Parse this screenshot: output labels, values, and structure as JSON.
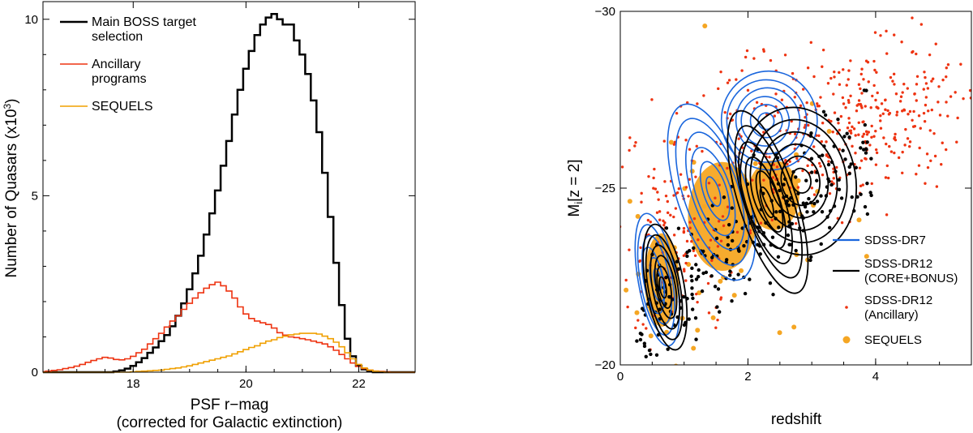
{
  "chart_data": [
    {
      "type": "line",
      "style": "step-histogram",
      "ylabel": "Number of Quasars (x10^3)",
      "xlabel": "PSF r−mag",
      "xlabel_sub": "(corrected for Galactic extinction)",
      "xlim": [
        16.4,
        23.0
      ],
      "ylim": [
        0,
        10.5
      ],
      "xticks": [
        18,
        20,
        22
      ],
      "yticks": [
        0,
        5,
        10
      ],
      "ytick_labels": [
        "0",
        "5",
        "10"
      ],
      "legend_position": "top-left",
      "series": [
        {
          "name": "Main BOSS target selection",
          "legend_lines": [
            "Main BOSS target",
            "selection"
          ],
          "color": "#000000",
          "x": [
            16.5,
            16.6,
            16.7,
            16.8,
            16.9,
            17.0,
            17.1,
            17.2,
            17.3,
            17.4,
            17.5,
            17.6,
            17.7,
            17.8,
            17.9,
            18.0,
            18.1,
            18.2,
            18.3,
            18.4,
            18.5,
            18.6,
            18.7,
            18.8,
            18.9,
            19.0,
            19.1,
            19.2,
            19.3,
            19.4,
            19.5,
            19.6,
            19.7,
            19.8,
            19.9,
            20.0,
            20.1,
            20.2,
            20.3,
            20.4,
            20.5,
            20.6,
            20.7,
            20.8,
            20.9,
            21.0,
            21.1,
            21.2,
            21.3,
            21.4,
            21.5,
            21.6,
            21.7,
            21.8,
            21.9,
            22.0,
            22.1,
            22.2,
            22.3,
            22.4,
            22.5,
            22.6,
            22.7,
            22.8,
            22.9
          ],
          "values": [
            0,
            0,
            0,
            0,
            0,
            0,
            0,
            0,
            0,
            0,
            0,
            0,
            0.02,
            0.05,
            0.1,
            0.18,
            0.28,
            0.4,
            0.55,
            0.7,
            0.88,
            1.05,
            1.3,
            1.6,
            1.95,
            2.35,
            2.8,
            3.3,
            3.9,
            4.5,
            5.15,
            5.85,
            6.55,
            7.3,
            8.0,
            8.6,
            9.1,
            9.55,
            9.85,
            10.05,
            10.15,
            10.0,
            9.85,
            9.85,
            9.4,
            9.0,
            8.45,
            7.7,
            6.8,
            5.65,
            4.4,
            3.1,
            1.9,
            0.95,
            0.45,
            0.18,
            0.08,
            0.03,
            0,
            0,
            0,
            0,
            0,
            0,
            0
          ]
        },
        {
          "name": "Ancillary programs",
          "legend_lines": [
            "Ancillary",
            "programs"
          ],
          "color": "#ee3311",
          "x": [
            16.5,
            16.6,
            16.7,
            16.8,
            16.9,
            17.0,
            17.1,
            17.2,
            17.3,
            17.4,
            17.5,
            17.6,
            17.7,
            17.8,
            17.9,
            18.0,
            18.1,
            18.2,
            18.3,
            18.4,
            18.5,
            18.6,
            18.7,
            18.8,
            18.9,
            19.0,
            19.1,
            19.2,
            19.3,
            19.4,
            19.5,
            19.6,
            19.7,
            19.8,
            19.9,
            20.0,
            20.1,
            20.2,
            20.3,
            20.4,
            20.5,
            20.6,
            20.7,
            20.8,
            20.9,
            21.0,
            21.1,
            21.2,
            21.3,
            21.4,
            21.5,
            21.6,
            21.7,
            21.8,
            21.9,
            22.0,
            22.1,
            22.2,
            22.3,
            22.4,
            22.5,
            22.6,
            22.7,
            22.8,
            22.9
          ],
          "values": [
            0.03,
            0.05,
            0.07,
            0.1,
            0.13,
            0.17,
            0.22,
            0.28,
            0.33,
            0.38,
            0.42,
            0.4,
            0.36,
            0.35,
            0.38,
            0.45,
            0.55,
            0.65,
            0.8,
            0.95,
            1.1,
            1.28,
            1.45,
            1.6,
            1.78,
            1.95,
            2.1,
            2.25,
            2.38,
            2.48,
            2.55,
            2.45,
            2.3,
            2.1,
            1.85,
            1.65,
            1.52,
            1.45,
            1.4,
            1.35,
            1.25,
            1.12,
            1.05,
            1.0,
            0.98,
            0.95,
            0.92,
            0.88,
            0.84,
            0.8,
            0.72,
            0.62,
            0.5,
            0.38,
            0.26,
            0.16,
            0.1,
            0.06,
            0.03,
            0.02,
            0.01,
            0,
            0,
            0,
            0
          ]
        },
        {
          "name": "SEQUELS",
          "legend_lines": [
            "SEQUELS"
          ],
          "color": "#f0a000",
          "x": [
            16.5,
            16.6,
            16.7,
            16.8,
            16.9,
            17.0,
            17.1,
            17.2,
            17.3,
            17.4,
            17.5,
            17.6,
            17.7,
            17.8,
            17.9,
            18.0,
            18.1,
            18.2,
            18.3,
            18.4,
            18.5,
            18.6,
            18.7,
            18.8,
            18.9,
            19.0,
            19.1,
            19.2,
            19.3,
            19.4,
            19.5,
            19.6,
            19.7,
            19.8,
            19.9,
            20.0,
            20.1,
            20.2,
            20.3,
            20.4,
            20.5,
            20.6,
            20.7,
            20.8,
            20.9,
            21.0,
            21.1,
            21.2,
            21.3,
            21.4,
            21.5,
            21.6,
            21.7,
            21.8,
            21.9,
            22.0,
            22.1,
            22.2,
            22.3,
            22.4,
            22.5,
            22.6,
            22.7,
            22.8,
            22.9
          ],
          "values": [
            0,
            0,
            0,
            0,
            0,
            0,
            0,
            0,
            0,
            0,
            0,
            0,
            0,
            0,
            0,
            0.01,
            0.02,
            0.03,
            0.04,
            0.05,
            0.06,
            0.08,
            0.1,
            0.12,
            0.15,
            0.18,
            0.22,
            0.26,
            0.3,
            0.34,
            0.38,
            0.42,
            0.46,
            0.52,
            0.58,
            0.64,
            0.7,
            0.75,
            0.82,
            0.88,
            0.92,
            0.98,
            1.02,
            1.06,
            1.08,
            1.1,
            1.1,
            1.1,
            1.08,
            1.02,
            0.95,
            0.85,
            0.72,
            0.55,
            0.38,
            0.22,
            0.12,
            0.06,
            0.03,
            0.01,
            0,
            0,
            0,
            0,
            0
          ]
        }
      ]
    },
    {
      "type": "scatter",
      "style": "contour-and-scatter",
      "xlabel": "redshift",
      "ylabel_main": "M",
      "ylabel_sub": "i",
      "ylabel_rest": "[z = 2]",
      "xlim": [
        0,
        5.5
      ],
      "ylim": [
        -20,
        -30
      ],
      "xticks": [
        0,
        2,
        4
      ],
      "yticks": [
        -30,
        -25,
        -20
      ],
      "ytick_labels": [
        "−30",
        "−25",
        "−20"
      ],
      "legend_position": "bottom-right",
      "series": [
        {
          "name": "SDSS-DR7",
          "legend_lines": [
            "SDSS-DR7"
          ],
          "color": "#1a66dd",
          "marker": "contour",
          "contour_centers": [
            [
              0.55,
              -22.4
            ],
            [
              1.45,
              -24.9
            ],
            [
              2.3,
              -26.9
            ]
          ],
          "contour_widths": [
            [
              0.3,
              1.9
            ],
            [
              0.55,
              2.6
            ],
            [
              0.75,
              1.4
            ]
          ]
        },
        {
          "name": "SDSS-DR12 (CORE+BONUS)",
          "legend_lines": [
            "SDSS-DR12",
            "(CORE+BONUS)"
          ],
          "color": "#000000",
          "marker": "contour",
          "contour_centers": [
            [
              0.7,
              -22.2
            ],
            [
              2.3,
              -24.6
            ],
            [
              2.8,
              -25.2
            ]
          ],
          "contour_widths": [
            [
              0.3,
              1.8
            ],
            [
              0.45,
              2.7
            ],
            [
              0.9,
              2.1
            ]
          ]
        },
        {
          "name": "SDSS-DR12 (Ancillary)",
          "legend_lines": [
            "SDSS-DR12",
            "(Ancillary)"
          ],
          "color": "#ee3311",
          "marker": "point",
          "cloud_centers": [
            [
              0.8,
              -23.6
            ],
            [
              2.4,
              -26.2
            ],
            [
              3.5,
              -26.6
            ],
            [
              4.4,
              -27.6
            ]
          ],
          "cloud_spread": [
            [
              0.45,
              1.6
            ],
            [
              0.8,
              1.2
            ],
            [
              0.7,
              1.1
            ],
            [
              0.5,
              0.9
            ]
          ]
        },
        {
          "name": "SEQUELS",
          "legend_lines": [
            "SEQUELS"
          ],
          "color": "#f5a623",
          "marker": "filled-circle",
          "cloud_centers": [
            [
              0.65,
              -22.4
            ],
            [
              2.4,
              -24.8
            ],
            [
              1.6,
              -24.2
            ]
          ],
          "cloud_spread": [
            [
              0.3,
              1.2
            ],
            [
              0.45,
              0.9
            ],
            [
              0.6,
              1.4
            ]
          ]
        }
      ]
    }
  ]
}
